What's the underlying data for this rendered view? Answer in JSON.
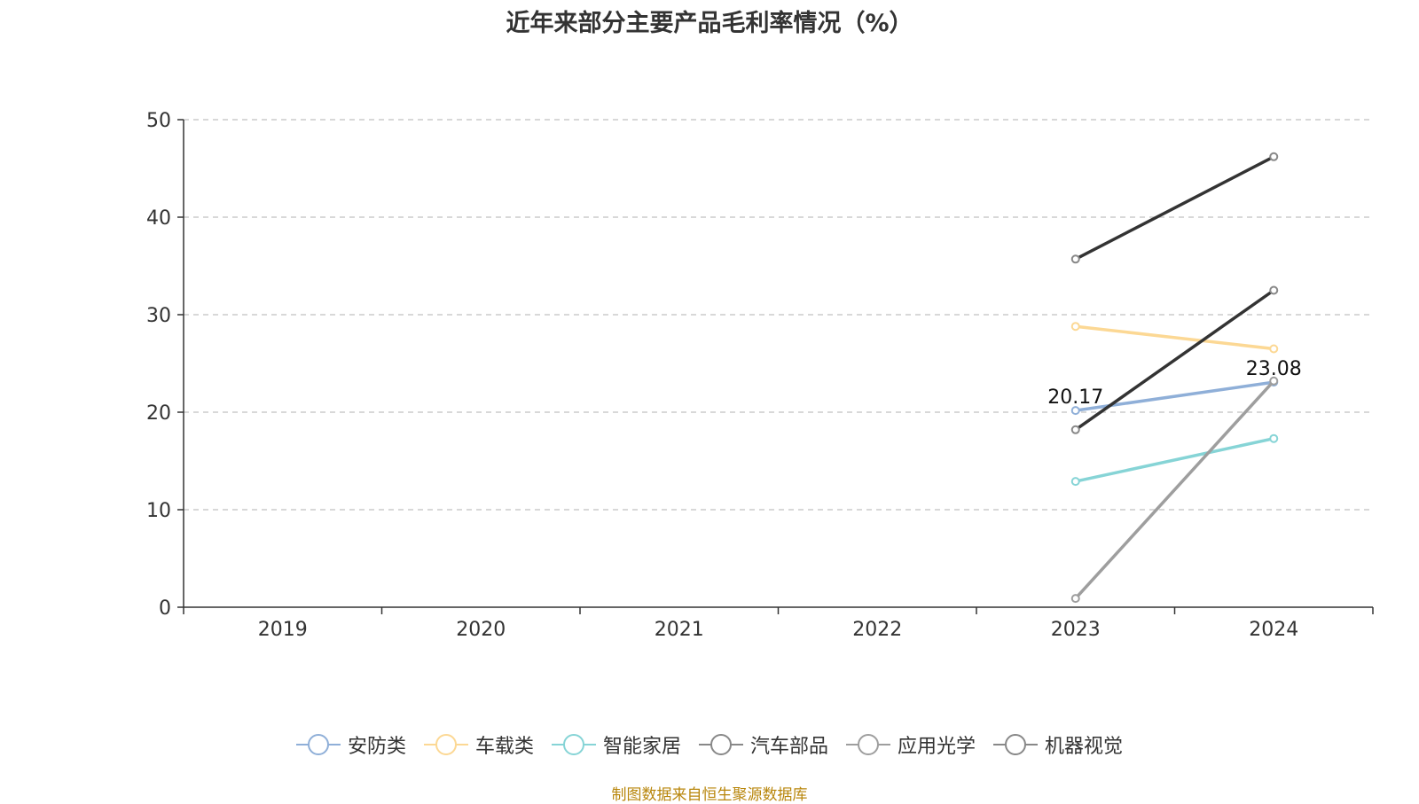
{
  "title": "近年来部分主要产品毛利率情况（%）",
  "source": "制图数据来自恒生聚源数据库",
  "chart_data": {
    "type": "line",
    "title": "近年来部分主要产品毛利率情况（%）",
    "categories": [
      "2019",
      "2020",
      "2021",
      "2022",
      "2023",
      "2024"
    ],
    "ylim": [
      0,
      50
    ],
    "yticks": [
      0,
      10,
      20,
      30,
      40,
      50
    ],
    "grid": true,
    "legend_position": "bottom",
    "series": [
      {
        "name": "安防类",
        "color": "#8fafd8",
        "values": [
          null,
          null,
          null,
          null,
          20.17,
          23.08
        ],
        "data_labels": [
          null,
          null,
          null,
          null,
          "20.17",
          "23.08"
        ]
      },
      {
        "name": "车载类",
        "color": "#fcd894",
        "values": [
          null,
          null,
          null,
          null,
          28.8,
          26.5
        ]
      },
      {
        "name": "智能家居",
        "color": "#86d4d6",
        "values": [
          null,
          null,
          null,
          null,
          12.9,
          17.3
        ]
      },
      {
        "name": "汽车部品",
        "color": "#333333",
        "values": [
          null,
          null,
          null,
          null,
          18.2,
          32.5
        ]
      },
      {
        "name": "应用光学",
        "color": "#9e9e9e",
        "values": [
          null,
          null,
          null,
          null,
          0.9,
          23.2
        ]
      },
      {
        "name": "机器视觉",
        "color": "#333333",
        "values": [
          null,
          null,
          null,
          null,
          35.7,
          46.2
        ]
      }
    ]
  }
}
